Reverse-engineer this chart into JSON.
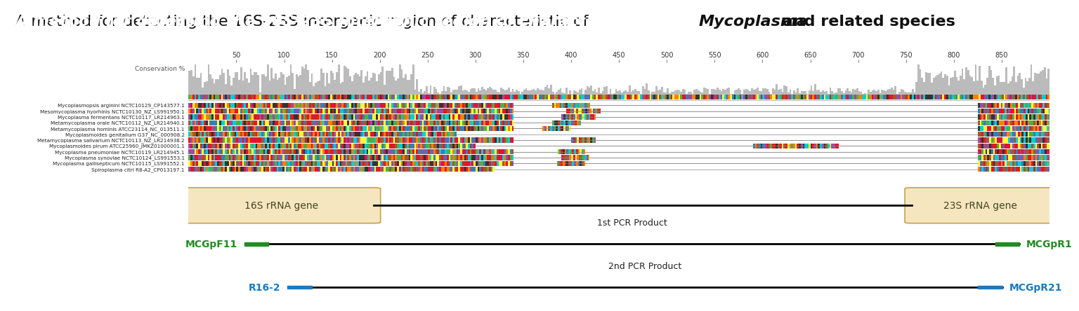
{
  "title_plain": "A method for detecting the 16S-23S intergenic region of characteristic of ",
  "title_italic_bold": "Mycoplasma",
  "title_suffix": " and related species",
  "bg_color": "#ffffff",
  "sequences": [
    "Mycoplasmopsis arginini NCTC10129_CP143577.1",
    "Mesomycoplasma hyorhinis NCTC10130_NZ_LS991950.1",
    "Mycoplasma fermentans NCTC10117_LR214963.1",
    "Metamycoplasma orale NCTC10112_NZ_LR214940.1",
    "Metamycoplasma hominis ATCC23114_NC_013511.1",
    "Mycoplasmoides genitalium G37_NC_000908.2",
    "Metamycoplasma salivarium NCTC10113_NZ_LR214938.2",
    "Mycoplasmoides pirum ATCC25960_JMKZ01000001.1",
    "Mycoplasma pneumoniae NCTC10119_LR214945.1",
    "Mycoplasma synoviae NCTC10124_LS991553.1",
    "Mycoplasma gallisepticum NCTC10115_LS991552.1",
    "Spiroplasma citri R8-A2_CP013197.1"
  ],
  "axis_ticks": [
    50,
    100,
    150,
    200,
    250,
    300,
    350,
    400,
    450,
    500,
    550,
    600,
    650,
    700,
    750,
    800,
    850
  ],
  "conservation_label": "Conservation %",
  "gene_16s_label": "16S rRNA gene",
  "gene_23s_label": "23S rRNA gene",
  "gene_box_facecolor": "#f5e6c0",
  "gene_box_edgecolor": "#c8a050",
  "pcr1_label": "1st PCR Product",
  "pcr1_left_label": "MCGpF11",
  "pcr1_right_label": "MCGpR1",
  "pcr1_color": "#228B22",
  "pcr2_label": "2nd PCR Product",
  "pcr2_left_label": "R16-2",
  "pcr2_right_label": "MCGpR21",
  "pcr2_color": "#1a7abf",
  "line_color": "#000000"
}
